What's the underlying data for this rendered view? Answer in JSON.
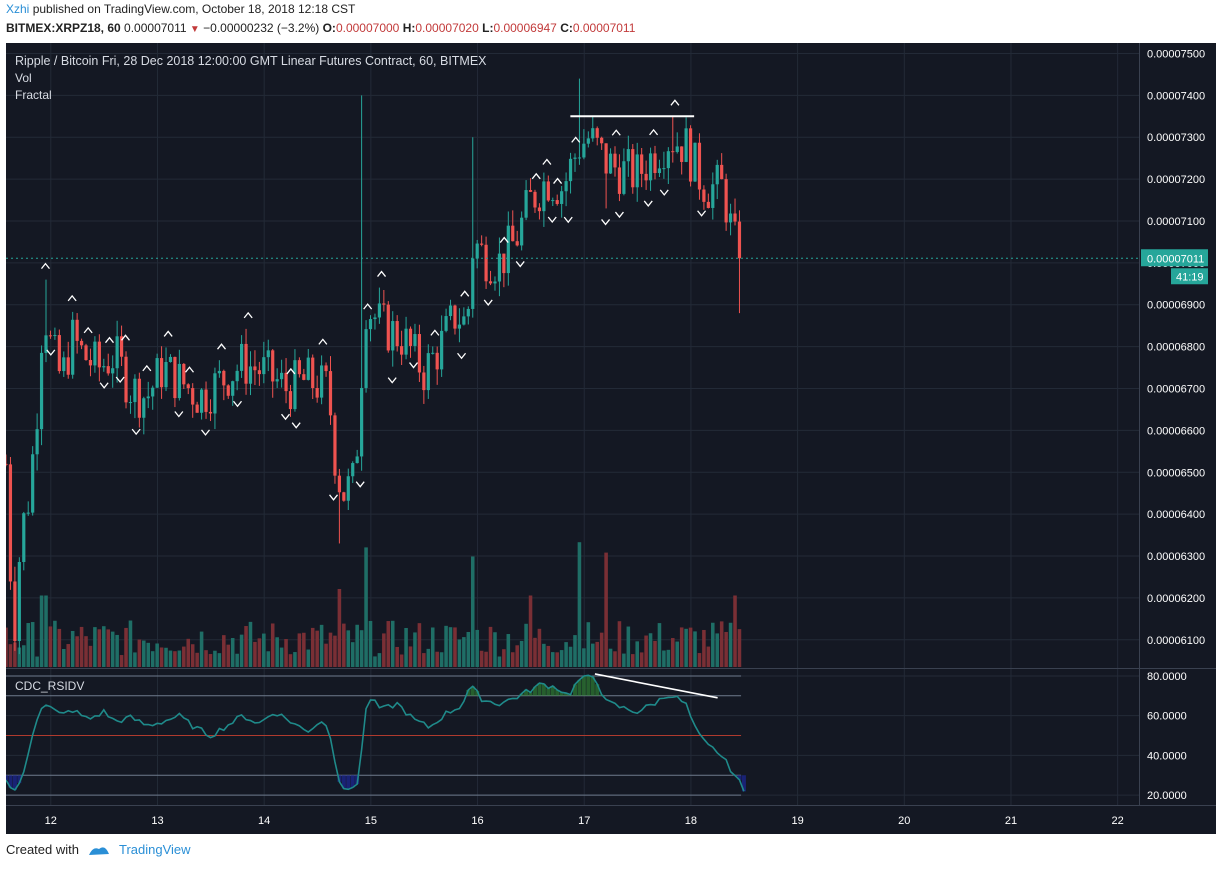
{
  "header": {
    "author": "Xzhi",
    "published_text": "published on TradingView.com, October 18, 2018 12:18 CST"
  },
  "ohlc": {
    "symbol": "BITMEX:XRPZ18, 60",
    "price": "0.00007011",
    "arrow": "▼",
    "change": "−0.00000232 (−3.2%)",
    "o_label": "O:",
    "o": "0.00007000",
    "h_label": "H:",
    "h": "0.00007020",
    "l_label": "L:",
    "l": "0.00006947",
    "c_label": "C:",
    "c": "0.00007011"
  },
  "legend": {
    "title": "Ripple / Bitcoin Fri, 28 Dec 2018 12:00:00 GMT Linear Futures Contract, 60, BITMEX",
    "vol": "Vol",
    "fractal": "Fractal"
  },
  "oscillator": {
    "name": "CDC_RSIDV"
  },
  "footer": {
    "created_with": "Created with",
    "brand": "TradingView"
  },
  "colors": {
    "background": "#141823",
    "up": "#26a69a",
    "down": "#ef5350",
    "grid": "#232a37",
    "axis_text": "#ffffff",
    "price_tag": "#26a69a",
    "rsi_line": "#1f8a8a",
    "overbought_fill": "#2e7d32",
    "oversold_fill": "#1a237e"
  },
  "chart_data": {
    "type": "candlestick",
    "price_axis": {
      "ticks": [
        "0.00007500",
        "0.00007400",
        "0.00007300",
        "0.00007200",
        "0.00007100",
        "0.00007000",
        "0.00006900",
        "0.00006800",
        "0.00006700",
        "0.00006600",
        "0.00006500",
        "0.00006400",
        "0.00006300",
        "0.00006200",
        "0.00006100"
      ],
      "range": [
        6.035e-05,
        7.525e-05
      ]
    },
    "time_axis": {
      "ticks": [
        "12",
        "13",
        "14",
        "15",
        "16",
        "17",
        "18",
        "19",
        "20",
        "21",
        "22"
      ],
      "range": [
        11.58,
        22.2
      ]
    },
    "last_price_tag": "0.00007011",
    "countdown_tag": "41:19",
    "last_price": 7.011e-05,
    "price_anchors": [
      [
        11.58,
        6.52e-05
      ],
      [
        11.65,
        6.1e-05
      ],
      [
        11.72,
        6.35e-05
      ],
      [
        11.8,
        6.45e-05
      ],
      [
        11.87,
        6.65e-05
      ],
      [
        11.93,
        6.9e-05
      ],
      [
        12.0,
        6.8e-05
      ],
      [
        12.1,
        6.72e-05
      ],
      [
        12.2,
        6.82e-05
      ],
      [
        12.3,
        6.78e-05
      ],
      [
        12.45,
        6.75e-05
      ],
      [
        12.6,
        6.78e-05
      ],
      [
        12.75,
        6.7e-05
      ],
      [
        12.9,
        6.68e-05
      ],
      [
        13.05,
        6.75e-05
      ],
      [
        13.2,
        6.72e-05
      ],
      [
        13.4,
        6.68e-05
      ],
      [
        13.6,
        6.72e-05
      ],
      [
        13.8,
        6.76e-05
      ],
      [
        14.0,
        6.74e-05
      ],
      [
        14.2,
        6.7e-05
      ],
      [
        14.4,
        6.72e-05
      ],
      [
        14.6,
        6.7e-05
      ],
      [
        14.68,
        6.5e-05
      ],
      [
        14.75,
        6.45e-05
      ],
      [
        14.85,
        6.48e-05
      ],
      [
        14.95,
        6.9e-05
      ],
      [
        15.1,
        6.85e-05
      ],
      [
        15.3,
        6.82e-05
      ],
      [
        15.5,
        6.74e-05
      ],
      [
        15.65,
        6.8e-05
      ],
      [
        15.8,
        6.88e-05
      ],
      [
        15.9,
        6.85e-05
      ],
      [
        15.96,
        7.05e-05
      ],
      [
        16.05,
        7.02e-05
      ],
      [
        16.2,
        7e-05
      ],
      [
        16.35,
        7.05e-05
      ],
      [
        16.5,
        7.15e-05
      ],
      [
        16.65,
        7.2e-05
      ],
      [
        16.8,
        7.18e-05
      ],
      [
        16.95,
        7.28e-05
      ],
      [
        17.05,
        7.3e-05
      ],
      [
        17.2,
        7.24e-05
      ],
      [
        17.35,
        7.22e-05
      ],
      [
        17.5,
        7.21e-05
      ],
      [
        17.65,
        7.26e-05
      ],
      [
        17.8,
        7.3e-05
      ],
      [
        17.95,
        7.28e-05
      ],
      [
        18.05,
        7.22e-05
      ],
      [
        18.15,
        7.18e-05
      ],
      [
        18.3,
        7.18e-05
      ],
      [
        18.4,
        7.05e-05
      ],
      [
        18.47,
        7.01e-05
      ]
    ],
    "spikes_high": [
      [
        11.97,
        6.96e-05
      ],
      [
        14.92,
        7.4e-05
      ],
      [
        15.96,
        7.3e-05
      ],
      [
        16.95,
        7.44e-05
      ],
      [
        17.85,
        7.35e-05
      ]
    ],
    "spikes_low": [
      [
        14.72,
        6.33e-05
      ],
      [
        14.85,
        6.48e-05
      ],
      [
        17.2,
        7.13e-05
      ],
      [
        18.47,
        6.88e-05
      ]
    ],
    "fractals_up": [
      11.95,
      12.2,
      12.35,
      12.55,
      12.7,
      12.9,
      13.1,
      13.3,
      13.6,
      13.85,
      14.25,
      14.55,
      14.97,
      15.1,
      15.6,
      15.88,
      16.25,
      16.55,
      16.65,
      16.75,
      16.92,
      17.3,
      17.65,
      17.85
    ],
    "fractals_down": [
      12.0,
      12.5,
      12.65,
      12.8,
      13.2,
      13.45,
      13.75,
      14.2,
      14.3,
      14.65,
      14.9,
      15.2,
      15.4,
      15.85,
      16.1,
      16.4,
      16.7,
      16.85,
      17.2,
      17.33,
      17.6,
      17.75,
      18.1
    ],
    "resistance_line": {
      "x": [
        16.87,
        18.03
      ],
      "y": [
        7.35e-05,
        7.35e-05
      ]
    },
    "volume_spikes": [
      [
        11.93,
        0.55
      ],
      [
        14.7,
        0.6
      ],
      [
        14.95,
        0.92
      ],
      [
        15.96,
        0.85
      ],
      [
        16.5,
        0.55
      ],
      [
        16.95,
        0.96
      ],
      [
        17.2,
        0.88
      ],
      [
        18.4,
        0.55
      ]
    ],
    "rsi": {
      "axis_ticks": [
        "80.0000",
        "60.0000",
        "40.0000",
        "20.0000"
      ],
      "range": [
        15,
        83
      ],
      "levels": [
        80,
        70,
        50,
        30,
        20
      ],
      "anchors": [
        [
          11.58,
          29
        ],
        [
          11.65,
          21
        ],
        [
          11.75,
          31
        ],
        [
          11.85,
          56
        ],
        [
          11.93,
          67
        ],
        [
          12.0,
          64
        ],
        [
          12.1,
          60
        ],
        [
          12.2,
          63
        ],
        [
          12.35,
          58
        ],
        [
          12.5,
          62
        ],
        [
          12.6,
          57
        ],
        [
          12.75,
          59
        ],
        [
          12.9,
          55
        ],
        [
          13.05,
          57
        ],
        [
          13.2,
          60
        ],
        [
          13.35,
          54
        ],
        [
          13.5,
          50
        ],
        [
          13.65,
          55
        ],
        [
          13.8,
          60
        ],
        [
          13.95,
          56
        ],
        [
          14.1,
          62
        ],
        [
          14.25,
          57
        ],
        [
          14.4,
          52
        ],
        [
          14.55,
          58
        ],
        [
          14.62,
          50
        ],
        [
          14.7,
          28
        ],
        [
          14.78,
          21
        ],
        [
          14.88,
          27
        ],
        [
          14.97,
          70
        ],
        [
          15.1,
          63
        ],
        [
          15.25,
          66
        ],
        [
          15.4,
          58
        ],
        [
          15.55,
          54
        ],
        [
          15.7,
          61
        ],
        [
          15.85,
          65
        ],
        [
          15.93,
          75
        ],
        [
          16.05,
          68
        ],
        [
          16.2,
          66
        ],
        [
          16.35,
          69
        ],
        [
          16.5,
          73
        ],
        [
          16.6,
          76
        ],
        [
          16.75,
          74
        ],
        [
          16.85,
          70
        ],
        [
          16.95,
          78
        ],
        [
          17.1,
          80
        ],
        [
          17.2,
          67
        ],
        [
          17.35,
          64
        ],
        [
          17.5,
          62
        ],
        [
          17.65,
          66
        ],
        [
          17.8,
          71
        ],
        [
          17.95,
          66
        ],
        [
          18.05,
          52
        ],
        [
          18.15,
          45
        ],
        [
          18.25,
          42
        ],
        [
          18.35,
          35
        ],
        [
          18.45,
          27
        ],
        [
          18.5,
          21
        ]
      ],
      "divergence_line": {
        "x": [
          17.1,
          18.25
        ],
        "y": [
          81,
          69
        ]
      }
    }
  }
}
